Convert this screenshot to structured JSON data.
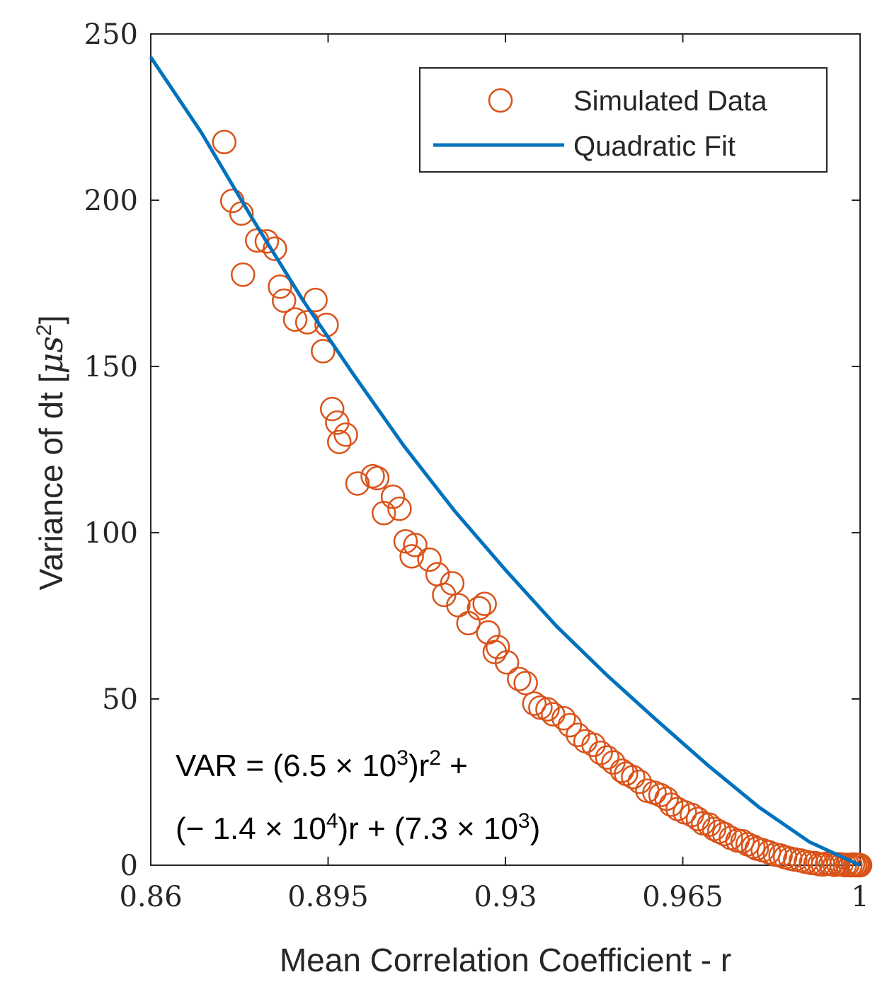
{
  "chart_data": {
    "type": "scatter",
    "xlabel": "Mean Correlation Coefficient - r",
    "ylabel": "Variance of dt [",
    "ylabel_symbol": "μ",
    "ylabel_unit": "s",
    "ylabel_sup": "2",
    "ylabel_close": "]",
    "xlim": [
      0.86,
      1.0
    ],
    "ylim": [
      0,
      250
    ],
    "xticks": [
      0.86,
      0.895,
      0.93,
      0.965,
      1.0
    ],
    "xtick_labels": [
      "0.86",
      "0.895",
      "0.93",
      "0.965",
      "1"
    ],
    "yticks": [
      0,
      50,
      100,
      150,
      200,
      250
    ],
    "ytick_labels": [
      "0",
      "50",
      "100",
      "150",
      "200",
      "250"
    ],
    "grid": false,
    "legend_position": "top-right",
    "equation": {
      "line1_a": "VAR = (6.5 × 10",
      "line1_a_sup": "3",
      "line1_b": ")r",
      "line1_b_sup": "2",
      "line1_c": " +",
      "line2_a": "(− 1.4 × 10",
      "line2_a_sup": "4",
      "line2_b": ")r + (7.3 × 10",
      "line2_b_sup": "3",
      "line2_c": ")"
    },
    "colors": {
      "data": "#D95319",
      "fit": "#0072BD"
    },
    "series": [
      {
        "name": "Simulated Data",
        "kind": "markers",
        "marker": "circle-open",
        "x": [
          0.8745,
          0.8761,
          0.8779,
          0.8782,
          0.881,
          0.8829,
          0.8845,
          0.8855,
          0.8863,
          0.8885,
          0.8909,
          0.8925,
          0.894,
          0.8947,
          0.8958,
          0.8968,
          0.8972,
          0.8985,
          0.9008,
          0.9038,
          0.9047,
          0.906,
          0.9078,
          0.9091,
          0.9103,
          0.9115,
          0.9122,
          0.915,
          0.9166,
          0.9179,
          0.9195,
          0.9207,
          0.9227,
          0.9248,
          0.9259,
          0.9266,
          0.9279,
          0.9285,
          0.9303,
          0.9327,
          0.934,
          0.9357,
          0.9369,
          0.9383,
          0.9394,
          0.9415,
          0.9427,
          0.9443,
          0.9458,
          0.9474,
          0.9488,
          0.9501,
          0.9513,
          0.953,
          0.9538,
          0.9552,
          0.9565,
          0.958,
          0.9594,
          0.9606,
          0.9618,
          0.9627,
          0.964,
          0.9654,
          0.9668,
          0.968,
          0.969,
          0.9702,
          0.9712,
          0.9722,
          0.9732,
          0.9745,
          0.9758,
          0.9768,
          0.9778,
          0.9789,
          0.9796,
          0.9808,
          0.982,
          0.9832,
          0.9843,
          0.9852,
          0.9862,
          0.9872,
          0.9883,
          0.9893,
          0.9903,
          0.9912,
          0.992,
          0.9927,
          0.9935,
          0.9942,
          0.995,
          0.9957,
          0.9963,
          0.997,
          0.9975,
          0.9981,
          0.9986,
          0.999,
          0.9994,
          0.9997,
          1.0
        ],
        "y": [
          217.5,
          199.8,
          196.0,
          177.6,
          187.9,
          187.6,
          185.4,
          174.0,
          169.8,
          164.1,
          163.3,
          170.0,
          154.6,
          162.5,
          137.2,
          133.1,
          127.3,
          129.5,
          114.8,
          117.0,
          116.4,
          105.9,
          110.8,
          107.2,
          97.4,
          92.9,
          96.3,
          91.9,
          87.5,
          81.3,
          84.8,
          78.2,
          72.8,
          77.3,
          78.6,
          70.0,
          64.1,
          65.6,
          61.0,
          56.0,
          54.8,
          48.6,
          47.4,
          46.9,
          45.4,
          44.2,
          42.1,
          39.2,
          37.3,
          36.2,
          33.8,
          32.4,
          30.9,
          28.4,
          27.5,
          26.5,
          25.1,
          22.4,
          21.8,
          21.1,
          20.0,
          18.2,
          16.9,
          15.9,
          15.1,
          13.9,
          12.6,
          12.2,
          10.9,
          10.1,
          9.4,
          8.2,
          7.4,
          7.2,
          6.3,
          5.6,
          5.0,
          4.5,
          3.9,
          3.2,
          2.9,
          2.4,
          2.0,
          1.7,
          1.4,
          1.0,
          0.7,
          0.6,
          0.3,
          0.2,
          0.5,
          0.4,
          0.1,
          0.3,
          0.2,
          0.0,
          0.1,
          0.0,
          0.2,
          0.0,
          0.1,
          0.0,
          0.0
        ]
      },
      {
        "name": "Quadratic Fit",
        "kind": "line",
        "x": [
          0.86,
          0.87,
          0.88,
          0.89,
          0.9,
          0.91,
          0.92,
          0.93,
          0.94,
          0.95,
          0.96,
          0.97,
          0.98,
          0.99,
          1.0
        ],
        "y": [
          243.0,
          220.3,
          194.6,
          170.0,
          147.6,
          126.0,
          106.5,
          88.8,
          72.0,
          57.2,
          43.4,
          30.0,
          17.5,
          7.0,
          0.0
        ]
      }
    ]
  }
}
